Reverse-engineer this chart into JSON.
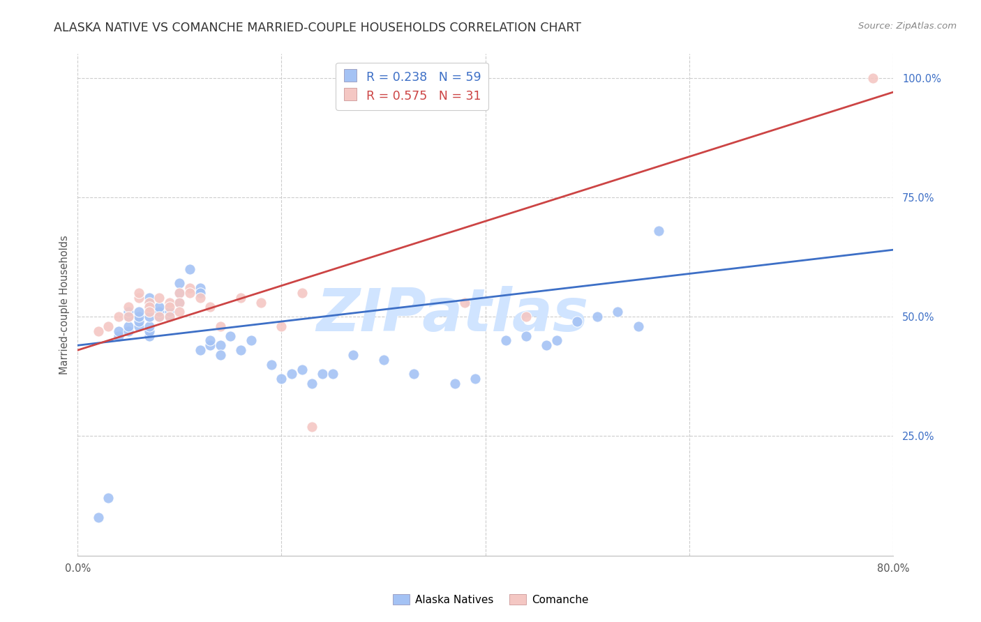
{
  "title": "ALASKA NATIVE VS COMANCHE MARRIED-COUPLE HOUSEHOLDS CORRELATION CHART",
  "source": "Source: ZipAtlas.com",
  "ylabel": "Married-couple Households",
  "x_min": 0.0,
  "x_max": 0.8,
  "y_min": 0.0,
  "y_max": 1.05,
  "blue_R": 0.238,
  "blue_N": 59,
  "pink_R": 0.575,
  "pink_N": 31,
  "blue_color": "#a4c2f4",
  "pink_color": "#f4c7c3",
  "blue_line_color": "#3d6fc6",
  "pink_line_color": "#cc4444",
  "watermark_text": "ZIPatlas",
  "watermark_color": "#d0e4ff",
  "legend_blue_label": "Alaska Natives",
  "legend_pink_label": "Comanche",
  "blue_scatter_x": [
    0.02,
    0.03,
    0.04,
    0.04,
    0.05,
    0.05,
    0.05,
    0.05,
    0.06,
    0.06,
    0.06,
    0.06,
    0.07,
    0.07,
    0.07,
    0.07,
    0.07,
    0.07,
    0.07,
    0.08,
    0.08,
    0.08,
    0.09,
    0.09,
    0.1,
    0.1,
    0.1,
    0.11,
    0.12,
    0.12,
    0.12,
    0.13,
    0.13,
    0.14,
    0.14,
    0.15,
    0.16,
    0.17,
    0.19,
    0.2,
    0.21,
    0.22,
    0.23,
    0.24,
    0.25,
    0.27,
    0.3,
    0.33,
    0.37,
    0.39,
    0.42,
    0.44,
    0.46,
    0.47,
    0.49,
    0.51,
    0.53,
    0.55,
    0.57
  ],
  "blue_scatter_y": [
    0.08,
    0.12,
    0.46,
    0.47,
    0.47,
    0.48,
    0.5,
    0.51,
    0.48,
    0.49,
    0.5,
    0.51,
    0.46,
    0.47,
    0.48,
    0.5,
    0.52,
    0.53,
    0.54,
    0.5,
    0.51,
    0.52,
    0.5,
    0.51,
    0.53,
    0.55,
    0.57,
    0.6,
    0.56,
    0.55,
    0.43,
    0.44,
    0.45,
    0.44,
    0.42,
    0.46,
    0.43,
    0.45,
    0.4,
    0.37,
    0.38,
    0.39,
    0.36,
    0.38,
    0.38,
    0.42,
    0.41,
    0.38,
    0.36,
    0.37,
    0.45,
    0.46,
    0.44,
    0.45,
    0.49,
    0.5,
    0.51,
    0.48,
    0.68
  ],
  "pink_scatter_x": [
    0.02,
    0.03,
    0.04,
    0.05,
    0.05,
    0.06,
    0.06,
    0.07,
    0.07,
    0.07,
    0.08,
    0.08,
    0.09,
    0.09,
    0.09,
    0.1,
    0.1,
    0.1,
    0.11,
    0.11,
    0.12,
    0.13,
    0.14,
    0.16,
    0.18,
    0.2,
    0.22,
    0.23,
    0.38,
    0.44,
    0.78
  ],
  "pink_scatter_y": [
    0.47,
    0.48,
    0.5,
    0.52,
    0.5,
    0.54,
    0.55,
    0.53,
    0.52,
    0.51,
    0.54,
    0.5,
    0.53,
    0.52,
    0.5,
    0.55,
    0.53,
    0.51,
    0.56,
    0.55,
    0.54,
    0.52,
    0.48,
    0.54,
    0.53,
    0.48,
    0.55,
    0.27,
    0.53,
    0.5,
    1.0
  ],
  "blue_line_x0": 0.0,
  "blue_line_y0": 0.44,
  "blue_line_x1": 0.8,
  "blue_line_y1": 0.64,
  "pink_line_x0": 0.0,
  "pink_line_y0": 0.43,
  "pink_line_x1": 0.8,
  "pink_line_y1": 0.97
}
